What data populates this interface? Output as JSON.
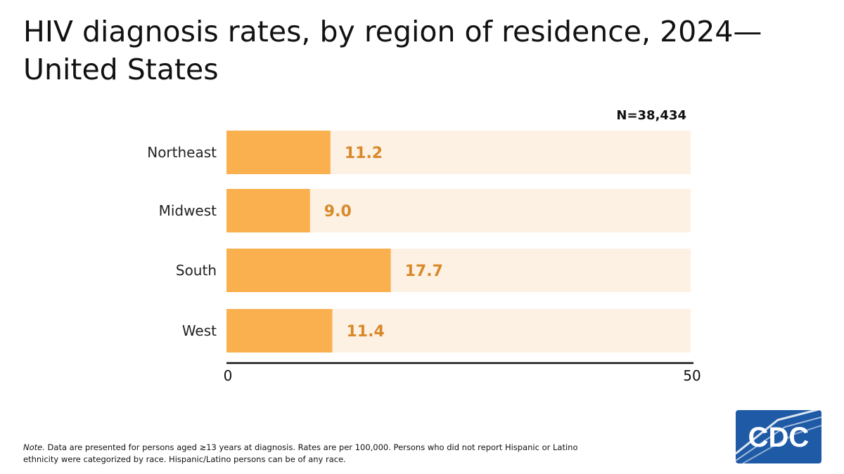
{
  "title": "HIV diagnosis rates, by region of residence, 2024—United States",
  "n_label": "N=38,434",
  "note": {
    "label": "Note.",
    "text": " Data are presented for persons aged ≥13 years at diagnosis. Rates are per 100,000. Persons who did not report Hispanic or Latino ethnicity were categorized by race. Hispanic/Latino persons can be of any race."
  },
  "logo": {
    "text": "CDC"
  },
  "colors": {
    "bar": "#fbb04f",
    "track": "#fdf1e3",
    "value_label": "#d9892a",
    "axis": "#111111",
    "logo_bg": "#1f5aa6"
  },
  "chart_data": {
    "type": "bar",
    "orientation": "horizontal",
    "categories": [
      "Northeast",
      "Midwest",
      "South",
      "West"
    ],
    "values": [
      11.2,
      9.0,
      17.7,
      11.4
    ],
    "value_labels": [
      "11.2",
      "9.0",
      "17.7",
      "11.4"
    ],
    "xlim": [
      0,
      50
    ],
    "x_ticks": [
      "0",
      "50"
    ],
    "grid": false
  }
}
